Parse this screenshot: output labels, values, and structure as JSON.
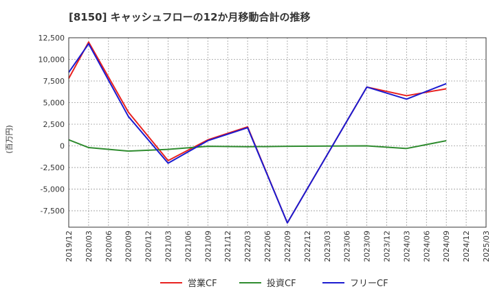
{
  "chart_data": {
    "type": "line",
    "title": "[8150]  キャッシュフローの12か月移動合計の推移",
    "ylabel": "(百万円)",
    "xlabel": "",
    "ylim": [
      -9400,
      12500
    ],
    "yticks": [
      12500,
      10000,
      7500,
      5000,
      2500,
      0,
      -2500,
      -5000,
      -7500
    ],
    "ytick_labels": [
      "12,500",
      "10,000",
      "7,500",
      "5,000",
      "2,500",
      "0",
      "-2,500",
      "-5,000",
      "-7,500"
    ],
    "categories": [
      "2019/12",
      "2020/03",
      "2020/06",
      "2020/09",
      "2020/12",
      "2021/03",
      "2021/06",
      "2021/09",
      "2021/12",
      "2022/03",
      "2022/06",
      "2022/09",
      "2022/12",
      "2023/03",
      "2023/06",
      "2023/09",
      "2023/12",
      "2024/03",
      "2024/06",
      "2024/09",
      "2024/12",
      "2025/03"
    ],
    "grid": true,
    "legend_position": "bottom",
    "series": [
      {
        "name": "営業CF",
        "color": "#e8201e",
        "points": [
          [
            0,
            7800
          ],
          [
            1,
            12000
          ],
          [
            3,
            3900
          ],
          [
            5,
            -1700
          ],
          [
            7,
            700
          ],
          [
            9,
            2200
          ],
          [
            11,
            -8900
          ],
          [
            15,
            6800
          ],
          [
            17,
            5800
          ],
          [
            19,
            6600
          ]
        ]
      },
      {
        "name": "投資CF",
        "color": "#2e8b2e",
        "points": [
          [
            0,
            700
          ],
          [
            1,
            -200
          ],
          [
            3,
            -600
          ],
          [
            5,
            -400
          ],
          [
            7,
            -50
          ],
          [
            9,
            -100
          ],
          [
            11,
            -50
          ],
          [
            15,
            0
          ],
          [
            17,
            -300
          ],
          [
            19,
            600
          ]
        ]
      },
      {
        "name": "フリーCF",
        "color": "#1a1ad0",
        "points": [
          [
            0,
            8500
          ],
          [
            1,
            11800
          ],
          [
            3,
            3400
          ],
          [
            5,
            -2000
          ],
          [
            7,
            600
          ],
          [
            9,
            2100
          ],
          [
            11,
            -8900
          ],
          [
            15,
            6800
          ],
          [
            17,
            5400
          ],
          [
            19,
            7200
          ]
        ]
      }
    ]
  }
}
